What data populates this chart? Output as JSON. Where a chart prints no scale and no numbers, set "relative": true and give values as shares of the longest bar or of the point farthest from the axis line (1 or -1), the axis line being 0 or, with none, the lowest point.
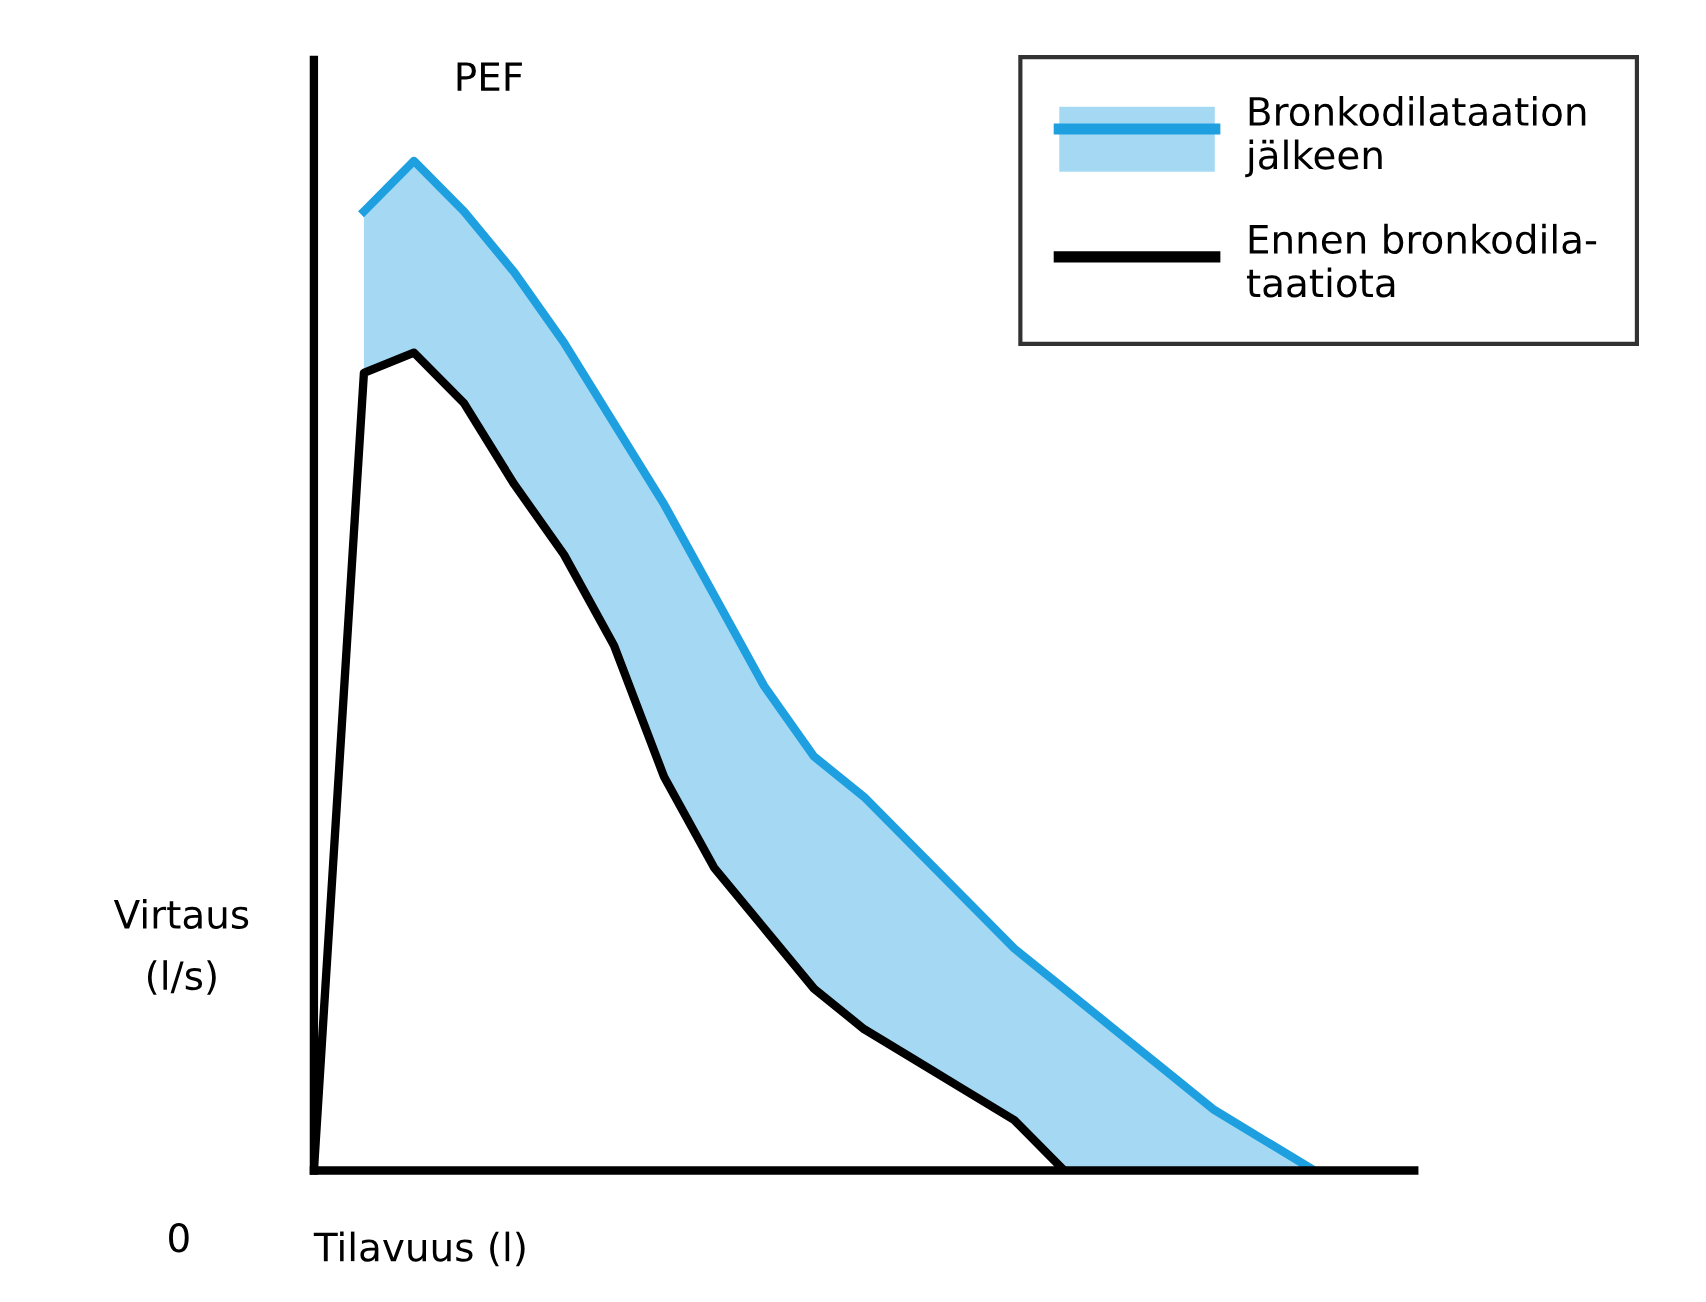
{
  "chart_data": {
    "type": "line",
    "relative": true,
    "xlabel": "Tilavuus (l)",
    "ylabel": "Virtaus\n(l/s)",
    "categories": [
      null,
      null,
      null,
      null,
      null,
      null,
      null,
      null,
      null,
      null,
      null,
      null,
      null,
      null,
      null,
      null,
      null,
      null,
      null,
      null,
      null,
      null,
      null
    ],
    "series": [
      {
        "name": "Bronkodilataation\njälkeen",
        "type": "area",
        "color": "#1e9fe0",
        "values": [
          null,
          0.95,
          1.0,
          0.95,
          0.89,
          0.82,
          0.74,
          0.66,
          0.57,
          0.48,
          0.41,
          0.37,
          0.32,
          0.27,
          0.22,
          0.18,
          0.14,
          0.1,
          0.06,
          0.03,
          0.0,
          null,
          null
        ]
      },
      {
        "name": "Ennen bronkodila-\ntaatiota",
        "color": "#000000",
        "values": [
          0,
          0.79,
          0.81,
          0.76,
          0.68,
          0.61,
          0.52,
          0.39,
          0.3,
          0.24,
          0.18,
          0.14,
          0.11,
          0.08,
          0.05,
          0.0,
          null,
          null,
          null,
          null,
          null,
          null,
          null
        ]
      }
    ],
    "annotations": [
      "PEF",
      "0"
    ],
    "legend": "top right",
    "marker": "none",
    "line_style": "solid"
  }
}
